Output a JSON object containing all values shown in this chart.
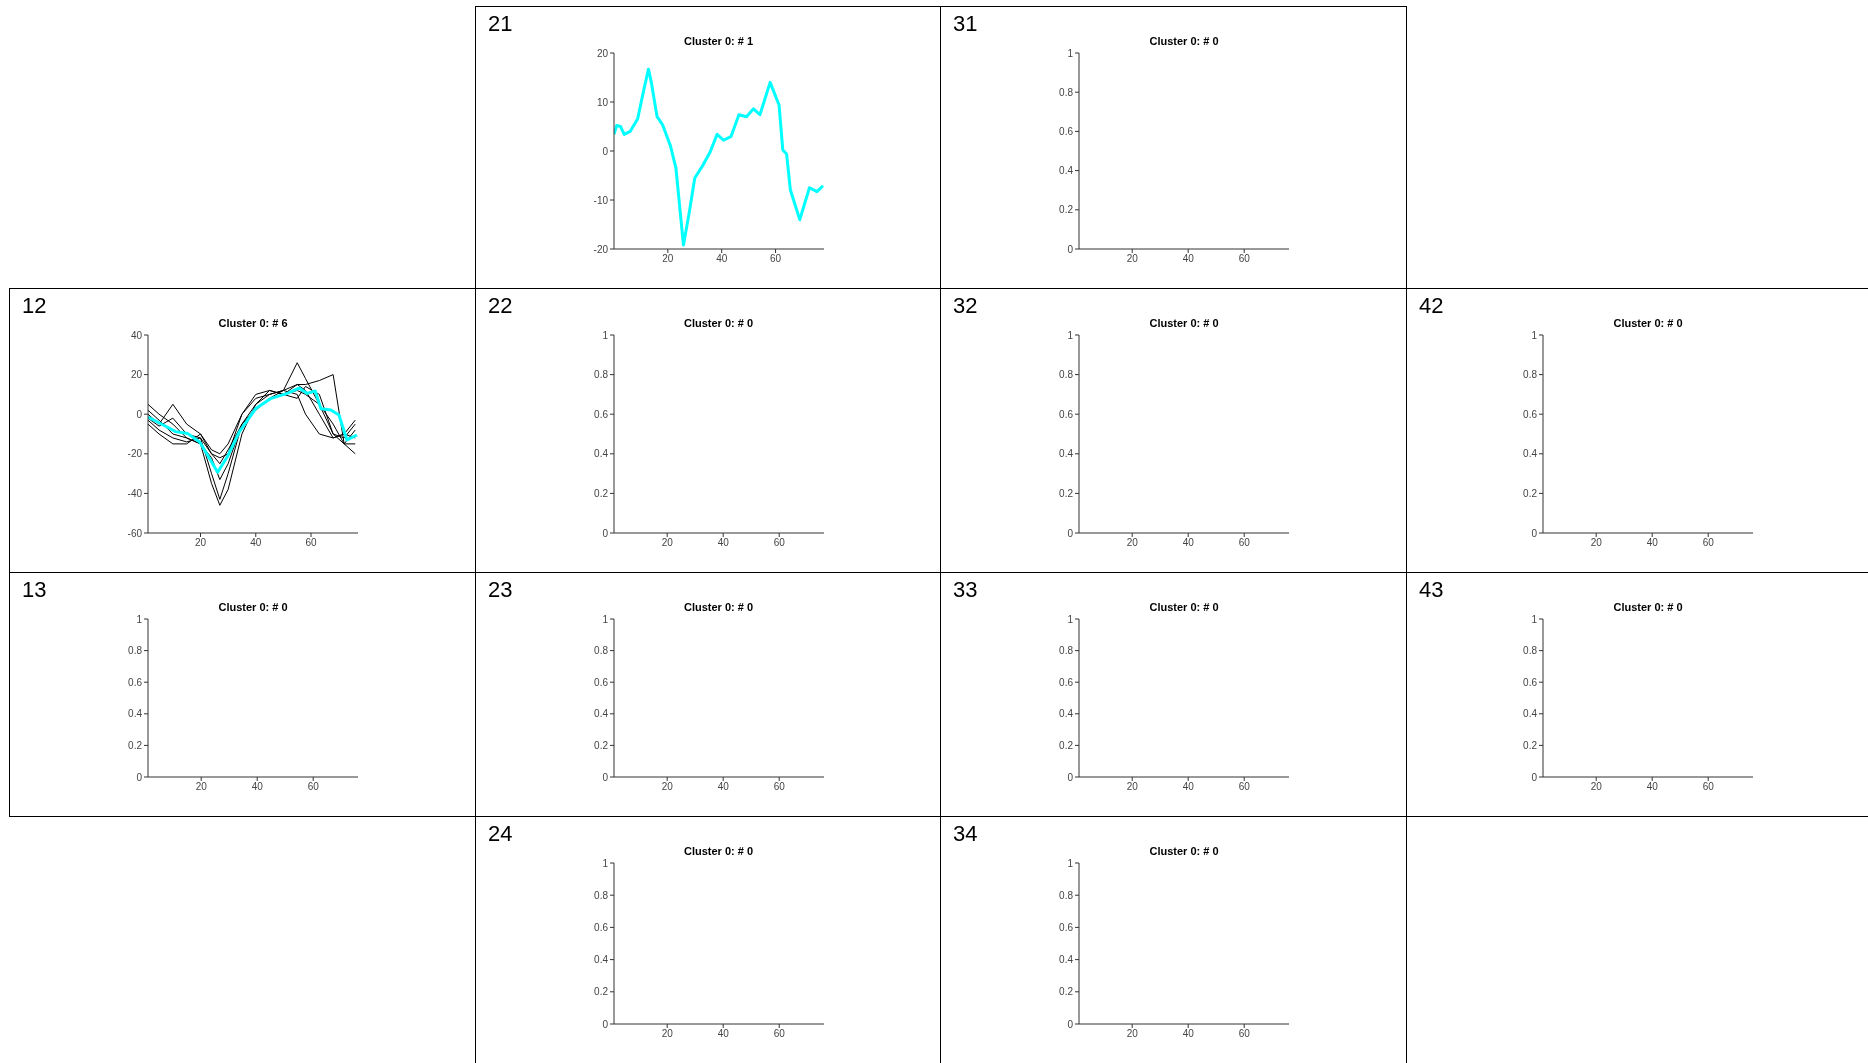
{
  "chart_data": [
    {
      "type": "line",
      "title": "Cluster 0: # 1",
      "annotations": [
        "21"
      ],
      "xlim": [
        0,
        78
      ],
      "xticks": [
        20,
        40,
        60
      ],
      "ylim": [
        -20,
        20
      ],
      "yticks": [
        -20,
        -10,
        0,
        10,
        20
      ],
      "series": [
        {
          "color": "#00ffff",
          "x": [
            0,
            1,
            2.4,
            3.8,
            6,
            8.8,
            11,
            12.8,
            13.9,
            16,
            18,
            21,
            23,
            25.8,
            27.9,
            30,
            32.9,
            35.7,
            38.3,
            40.7,
            43.5,
            46.4,
            49.2,
            51.8,
            54.2,
            58,
            61.3,
            62.7,
            64.1,
            65.5,
            69,
            72.6,
            75.4,
            77.6
          ],
          "values": [
            3.4,
            5.2,
            5,
            3.4,
            4,
            6.6,
            12.3,
            16.7,
            13.9,
            7,
            5.4,
            1,
            -3.5,
            -19.2,
            -12.7,
            -5.5,
            -3,
            -0.2,
            3.4,
            2.2,
            3,
            7.4,
            7,
            8.6,
            7.4,
            14,
            9.4,
            0.2,
            -0.6,
            -7.9,
            -14,
            -7.5,
            -8.3,
            -7.1
          ]
        }
      ]
    },
    {
      "type": "line",
      "title": "Cluster 0: # 0",
      "annotations": [
        "31"
      ],
      "xlim": [
        1,
        76
      ],
      "xticks": [
        20,
        40,
        60
      ],
      "ylim": [
        0,
        1
      ],
      "yticks": [
        0,
        0.2,
        0.4,
        0.6,
        0.8,
        1
      ]
    },
    {
      "type": "line",
      "title": "Cluster 0: # 6",
      "annotations": [
        "12"
      ],
      "xlim": [
        1,
        77
      ],
      "xticks": [
        20,
        40,
        60
      ],
      "ylim": [
        -60,
        40
      ],
      "yticks": [
        -60,
        -40,
        -20,
        0,
        20,
        40
      ],
      "series": [
        {
          "color": "#000000",
          "x": [
            1,
            5,
            10,
            15,
            20,
            24,
            27,
            30,
            35,
            40,
            45,
            50,
            55,
            58,
            63,
            68,
            72,
            76
          ],
          "values": [
            5,
            0,
            -5,
            -12,
            -15,
            -35,
            -46,
            -38,
            -10,
            5,
            10,
            12,
            26,
            18,
            5,
            -10,
            -12,
            -5
          ]
        },
        {
          "color": "#000000",
          "x": [
            1,
            5,
            10,
            15,
            20,
            24,
            27,
            30,
            35,
            40,
            45,
            50,
            55,
            58,
            63,
            68,
            72,
            76
          ],
          "values": [
            -3,
            -8,
            -12,
            -14,
            -12,
            -30,
            -43,
            -30,
            -5,
            3,
            8,
            12,
            15,
            15,
            17,
            20,
            -15,
            -20
          ]
        },
        {
          "color": "#000000",
          "x": [
            1,
            5,
            10,
            15,
            20,
            24,
            27,
            30,
            35,
            40,
            45,
            50,
            55,
            58,
            63,
            68,
            72,
            76
          ],
          "values": [
            0,
            -5,
            5,
            -5,
            -10,
            -18,
            -20,
            -15,
            0,
            8,
            10,
            12,
            10,
            0,
            -10,
            -12,
            -10,
            -12
          ]
        },
        {
          "color": "#000000",
          "x": [
            1,
            5,
            10,
            15,
            20,
            24,
            27,
            30,
            35,
            40,
            45,
            50,
            55,
            58,
            63,
            68,
            72,
            76
          ],
          "values": [
            -5,
            -10,
            -15,
            -15,
            -10,
            -20,
            -25,
            -18,
            -5,
            5,
            12,
            10,
            12,
            10,
            5,
            -5,
            -15,
            -8
          ]
        },
        {
          "color": "#000000",
          "x": [
            1,
            5,
            10,
            15,
            20,
            24,
            27,
            30,
            35,
            40,
            45,
            50,
            55,
            58,
            63,
            68,
            72,
            76
          ],
          "values": [
            2,
            -3,
            -10,
            -12,
            -15,
            -22,
            -33,
            -25,
            -5,
            2,
            8,
            10,
            15,
            12,
            0,
            -12,
            -10,
            -3
          ]
        },
        {
          "color": "#000000",
          "x": [
            1,
            5,
            10,
            15,
            20,
            24,
            27,
            30,
            35,
            40,
            45,
            50,
            55,
            58,
            63,
            68,
            72,
            76
          ],
          "values": [
            -2,
            -6,
            -2,
            -10,
            -12,
            -20,
            -22,
            -20,
            0,
            10,
            12,
            10,
            8,
            14,
            10,
            -10,
            -15,
            -15
          ]
        },
        {
          "color": "#00ffff",
          "x": [
            1,
            6.7,
            11,
            15.4,
            19.7,
            23.3,
            26.2,
            29.8,
            34.1,
            39.9,
            45.6,
            51.4,
            55.7,
            58.6,
            61.5,
            63.6,
            67.2,
            70.1,
            73,
            76.6
          ],
          "values": [
            -1.5,
            -5.6,
            -8.8,
            -9.8,
            -14,
            -22.4,
            -29.3,
            -21.3,
            -8.8,
            2.7,
            8,
            10.5,
            13.2,
            10.5,
            11.7,
            2.7,
            2.1,
            -0.4,
            -13,
            -10.5
          ]
        }
      ]
    },
    {
      "type": "line",
      "title": "Cluster 0: # 0",
      "annotations": [
        "22"
      ],
      "xlim": [
        1,
        76
      ],
      "xticks": [
        20,
        40,
        60
      ],
      "ylim": [
        0,
        1
      ],
      "yticks": [
        0,
        0.2,
        0.4,
        0.6,
        0.8,
        1
      ]
    },
    {
      "type": "line",
      "title": "Cluster 0: # 0",
      "annotations": [
        "32"
      ],
      "xlim": [
        1,
        76
      ],
      "xticks": [
        20,
        40,
        60
      ],
      "ylim": [
        0,
        1
      ],
      "yticks": [
        0,
        0.2,
        0.4,
        0.6,
        0.8,
        1
      ]
    },
    {
      "type": "line",
      "title": "Cluster 0: # 0",
      "annotations": [
        "42"
      ],
      "xlim": [
        1,
        76
      ],
      "xticks": [
        20,
        40,
        60
      ],
      "ylim": [
        0,
        1
      ],
      "yticks": [
        0,
        0.2,
        0.4,
        0.6,
        0.8,
        1
      ]
    },
    {
      "type": "line",
      "title": "Cluster 0: # 0",
      "annotations": [
        "13"
      ],
      "xlim": [
        1,
        76
      ],
      "xticks": [
        20,
        40,
        60
      ],
      "ylim": [
        0,
        1
      ],
      "yticks": [
        0,
        0.2,
        0.4,
        0.6,
        0.8,
        1
      ]
    },
    {
      "type": "line",
      "title": "Cluster 0: # 0",
      "annotations": [
        "23"
      ],
      "xlim": [
        1,
        76
      ],
      "xticks": [
        20,
        40,
        60
      ],
      "ylim": [
        0,
        1
      ],
      "yticks": [
        0,
        0.2,
        0.4,
        0.6,
        0.8,
        1
      ]
    },
    {
      "type": "line",
      "title": "Cluster 0: # 0",
      "annotations": [
        "33"
      ],
      "xlim": [
        1,
        76
      ],
      "xticks": [
        20,
        40,
        60
      ],
      "ylim": [
        0,
        1
      ],
      "yticks": [
        0,
        0.2,
        0.4,
        0.6,
        0.8,
        1
      ]
    },
    {
      "type": "line",
      "title": "Cluster 0: # 0",
      "annotations": [
        "43"
      ],
      "xlim": [
        1,
        76
      ],
      "xticks": [
        20,
        40,
        60
      ],
      "ylim": [
        0,
        1
      ],
      "yticks": [
        0,
        0.2,
        0.4,
        0.6,
        0.8,
        1
      ]
    },
    {
      "type": "line",
      "title": "Cluster 0: # 0",
      "annotations": [
        "24"
      ],
      "xlim": [
        1,
        76
      ],
      "xticks": [
        20,
        40,
        60
      ],
      "ylim": [
        0,
        1
      ],
      "yticks": [
        0,
        0.2,
        0.4,
        0.6,
        0.8,
        1
      ]
    },
    {
      "type": "line",
      "title": "Cluster 0: # 0",
      "annotations": [
        "34"
      ],
      "xlim": [
        1,
        76
      ],
      "xticks": [
        20,
        40,
        60
      ],
      "ylim": [
        0,
        1
      ],
      "yticks": [
        0,
        0.2,
        0.4,
        0.6,
        0.8,
        1
      ]
    }
  ]
}
